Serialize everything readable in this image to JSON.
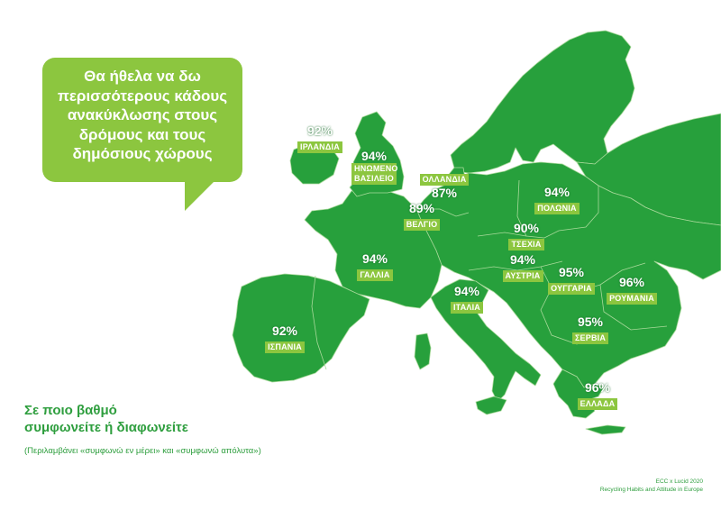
{
  "callout": {
    "lines": [
      "Θα ήθελα να δω",
      "περισσότερους κάδους",
      "ανακύκλωσης στους",
      "δρόμους και τους",
      "δημόσιους χώρους"
    ]
  },
  "question": {
    "line1": "Σε ποιο βαθμό",
    "line2": "συμφωνείτε ή διαφωνείτε",
    "note": "(Περιλαμβάνει «συμφωνώ εν μέρει» και «συμφωνώ απόλυτα»)"
  },
  "source": {
    "line1": "ECC x Lucid 2020",
    "line2": "Recycling Habits and Attitude in Europe"
  },
  "colors": {
    "land": "#27a03c",
    "border": "#a8d99a",
    "label_bg": "#8cc63f",
    "text": "#2e9e3e"
  },
  "countries": [
    {
      "name": "ΙΡΛΑΝΔΙΑ",
      "value": "92%"
    },
    {
      "name": "ΗΝΩΜΕΝΟ ΒΑΣΙΛΕΙΟ",
      "value": "94%"
    },
    {
      "name": "ΟΛΛΑΝΔΙΑ",
      "value": "87%"
    },
    {
      "name": "ΒΕΛΓΙΟ",
      "value": "89%"
    },
    {
      "name": "ΠΟΛΩΝΙΑ",
      "value": "94%"
    },
    {
      "name": "ΤΣΕΧΙΑ",
      "value": "90%"
    },
    {
      "name": "ΓΑΛΛΙΑ",
      "value": "94%"
    },
    {
      "name": "ΑΥΣΤΡΙΑ",
      "value": "94%"
    },
    {
      "name": "ΟΥΓΓΑΡΙΑ",
      "value": "95%"
    },
    {
      "name": "ΡΟΥΜΑΝΙΑ",
      "value": "96%"
    },
    {
      "name": "ΙΤΑΛΙΑ",
      "value": "94%"
    },
    {
      "name": "ΣΕΡΒΙΑ",
      "value": "95%"
    },
    {
      "name": "ΙΣΠΑΝΙΑ",
      "value": "92%"
    },
    {
      "name": "ΕΛΛΑΔΑ",
      "value": "96%"
    }
  ]
}
